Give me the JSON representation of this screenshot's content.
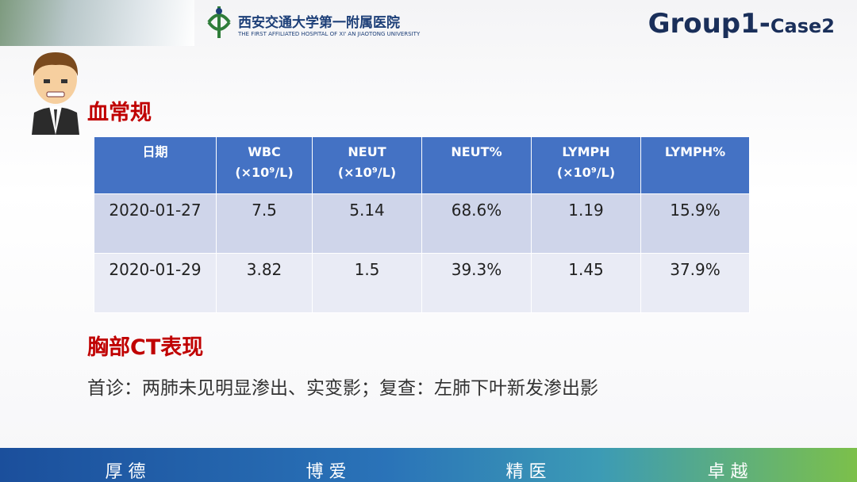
{
  "header": {
    "hospital_cn": "西安交通大学第一附属医院",
    "hospital_en": "THE FIRST AFFILIATED HOSPITAL OF XI' AN JIAOTONG UNIVERSITY",
    "title_main": "Group1-",
    "title_sub": "Case2"
  },
  "section1": {
    "title": "血常规"
  },
  "table": {
    "columns": [
      {
        "name": "日期"
      },
      {
        "name": "WBC",
        "unit": "(×10⁹/L)"
      },
      {
        "name": "NEUT",
        "unit": "(×10⁹/L)"
      },
      {
        "name": "NEUT%"
      },
      {
        "name": "LYMPH",
        "unit": "(×10⁹/L)"
      },
      {
        "name": "LYMPH%"
      }
    ],
    "rows": [
      [
        "2020-01-27",
        "7.5",
        "5.14",
        "68.6%",
        "1.19",
        "15.9%"
      ],
      [
        "2020-01-29",
        "3.82",
        "1.5",
        "39.3%",
        "1.45",
        "37.9%"
      ]
    ]
  },
  "section2": {
    "title": "胸部CT表现",
    "text": "首诊：两肺未见明显渗出、实变影；复查：左肺下叶新发渗出影"
  },
  "footer": {
    "words": [
      "厚 德",
      "博 爱",
      "精 医",
      "卓 越"
    ]
  }
}
